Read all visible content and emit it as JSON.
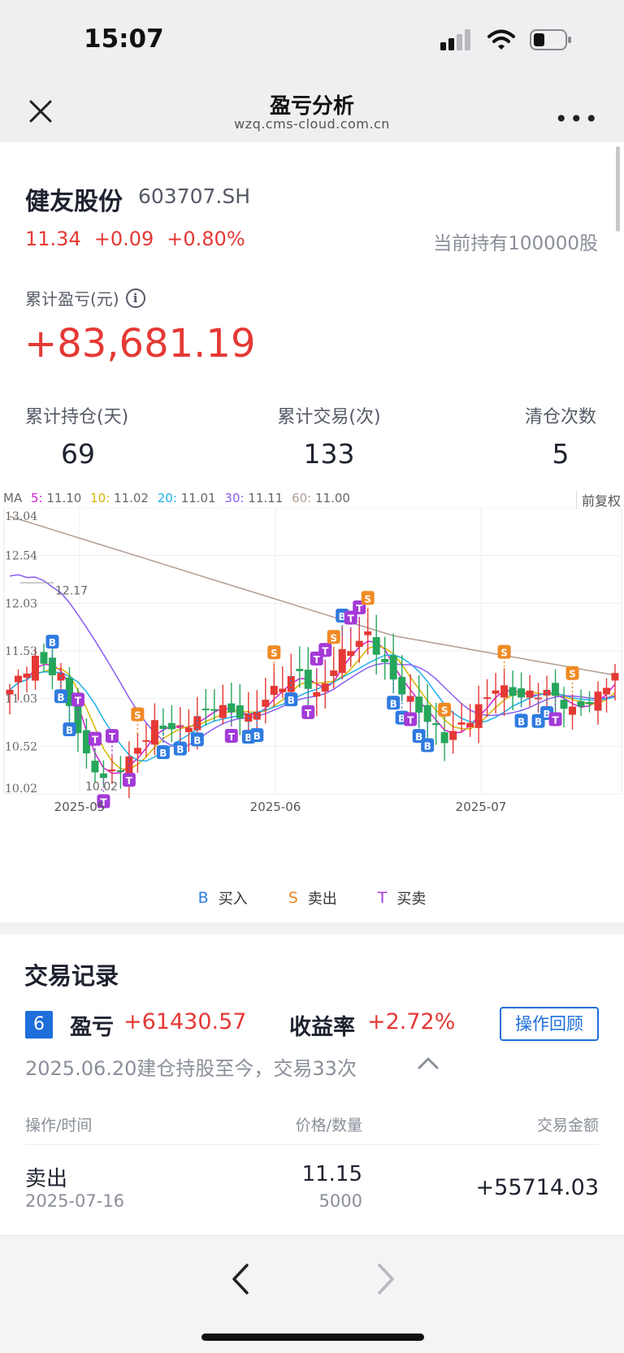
{
  "status_bar": {
    "time": "15:07",
    "icons": [
      "cellular-signal-icon",
      "wifi-icon",
      "battery-icon"
    ]
  },
  "nav": {
    "title": "盈亏分析",
    "url": "wzq.cms-cloud.com.cn",
    "close_icon": "close-icon",
    "more_icon": "more-icon",
    "more_label": "•••"
  },
  "stock": {
    "name": "健友股份",
    "code": "603707.SH",
    "price": "11.34",
    "change": "+0.09",
    "change_pct": "+0.80%",
    "holding": "当前持有100000股"
  },
  "summary": {
    "pl_label": "累计盈亏(元)",
    "info_icon": "i",
    "pl_value": "+83,681.19",
    "stats": [
      {
        "label": "累计持仓(天)",
        "value": "69"
      },
      {
        "label": "累计交易(次)",
        "value": "133"
      },
      {
        "label": "清仓次数",
        "value": "5"
      }
    ]
  },
  "ma": {
    "prefix": "MA",
    "items": [
      {
        "key": "5:",
        "value": "11.10",
        "color": "#d020d0"
      },
      {
        "key": "10:",
        "value": "11.02",
        "color": "#d8b400"
      },
      {
        "key": "20:",
        "value": "11.01",
        "color": "#1bb0e8"
      },
      {
        "key": "30:",
        "value": "11.11",
        "color": "#8a5cf0"
      },
      {
        "key": "60:",
        "value": "11.00",
        "color": "#b39d93"
      }
    ],
    "adjust_label": "前复权"
  },
  "chart_data": {
    "type": "candlestick",
    "ylim": [
      10.02,
      13.04
    ],
    "y_ticks": [
      "13.04",
      "12.54",
      "12.03",
      "11.53",
      "11.03",
      "10.52",
      "10.02"
    ],
    "x_ticks": [
      "2025-05",
      "2025-06",
      "2025-07"
    ],
    "max_label": "12.17",
    "min_label": "10.02",
    "colors": {
      "up": "#e53935",
      "down": "#26a65b",
      "buy": "#2f7be0",
      "sell": "#f08a24",
      "trade": "#a33ad8"
    }
  },
  "legend": [
    {
      "key": "B",
      "label": "买入",
      "color": "#2f7be0"
    },
    {
      "key": "S",
      "label": "卖出",
      "color": "#f08a24"
    },
    {
      "key": "T",
      "label": "买卖",
      "color": "#a33ad8"
    }
  ],
  "records": {
    "title": "交易记录",
    "index": "6",
    "pl_label": "盈亏",
    "pl_value": "+61430.57",
    "rate_label": "收益率",
    "rate_value": "+2.72%",
    "review_button": "操作回顾",
    "desc": "2025.06.20建仓持股至今，交易33次",
    "headers": {
      "action_time": "操作/时间",
      "price_qty": "价格/数量",
      "amount": "交易金额"
    },
    "rows": [
      {
        "action": "卖出",
        "date": "2025-07-16",
        "price": "11.15",
        "qty": "5000",
        "amount": "+55714.03"
      }
    ]
  },
  "toolbar": {
    "back_icon": "chevron-left-icon",
    "forward_icon": "chevron-right-icon"
  }
}
